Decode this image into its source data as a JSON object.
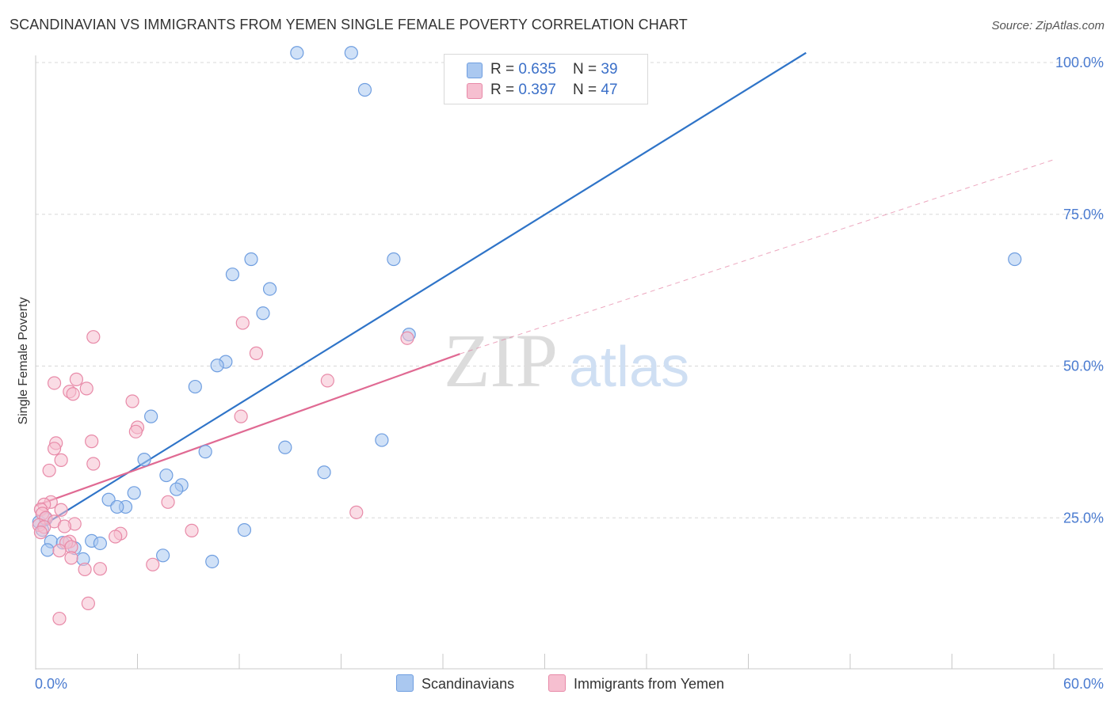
{
  "title": "SCANDINAVIAN VS IMMIGRANTS FROM YEMEN SINGLE FEMALE POVERTY CORRELATION CHART",
  "source": "Source: ZipAtlas.com",
  "watermark": {
    "zip": "ZIP",
    "atlas": "atlas"
  },
  "legend": {
    "rows": [
      {
        "r_label": "R = ",
        "r_value": "0.635",
        "n_label": "N = ",
        "n_value": "39"
      },
      {
        "r_label": "R = ",
        "r_value": "0.397",
        "n_label": "N = ",
        "n_value": "47"
      }
    ]
  },
  "bottom_legend": [
    "Scandinavians",
    "Immigrants from Yemen"
  ],
  "colors": {
    "blue_fill": "#aac8f0",
    "blue_stroke": "#6f9ee0",
    "blue_line": "#2f74c8",
    "pink_fill": "#f6bfd0",
    "pink_stroke": "#e88aa8",
    "pink_line": "#e06a93",
    "axis_label": "#4a7bd0",
    "grid": "#d8d8d8"
  },
  "chart_data": {
    "type": "scatter",
    "title": "SCANDINAVIAN VS IMMIGRANTS FROM YEMEN SINGLE FEMALE POVERTY CORRELATION CHART",
    "xlabel": "",
    "ylabel": "Single Female Poverty",
    "xlim": [
      0,
      60
    ],
    "ylim": [
      0,
      102
    ],
    "x_tick_labels": [
      "0.0%",
      "60.0%"
    ],
    "y_ticks": [
      25,
      50,
      75,
      100
    ],
    "y_tick_labels": [
      "25.0%",
      "50.0%",
      "75.0%",
      "100.0%"
    ],
    "series": [
      {
        "name": "Scandinavians",
        "r": 0.635,
        "n": 39,
        "trend": {
          "x": [
            0,
            45.4
          ],
          "y": [
            23.0,
            101.6
          ],
          "extend_dashed_to": null
        },
        "points": [
          [
            15.4,
            101.6
          ],
          [
            18.6,
            101.6
          ],
          [
            19.4,
            95.5
          ],
          [
            12.7,
            67.6
          ],
          [
            21.1,
            67.6
          ],
          [
            57.7,
            67.6
          ],
          [
            11.6,
            65.1
          ],
          [
            13.8,
            62.7
          ],
          [
            13.4,
            58.7
          ],
          [
            22.0,
            55.2
          ],
          [
            11.2,
            50.7
          ],
          [
            10.7,
            50.1
          ],
          [
            9.4,
            46.6
          ],
          [
            6.8,
            41.7
          ],
          [
            6.4,
            34.6
          ],
          [
            10.0,
            35.9
          ],
          [
            14.7,
            36.6
          ],
          [
            20.4,
            37.8
          ],
          [
            17.0,
            32.5
          ],
          [
            7.7,
            32.0
          ],
          [
            8.6,
            30.4
          ],
          [
            8.3,
            29.7
          ],
          [
            5.8,
            29.1
          ],
          [
            4.3,
            28.0
          ],
          [
            5.3,
            26.8
          ],
          [
            4.8,
            26.8
          ],
          [
            12.3,
            23.0
          ],
          [
            0.4,
            23.0
          ],
          [
            0.9,
            21.1
          ],
          [
            1.6,
            20.9
          ],
          [
            3.3,
            21.2
          ],
          [
            3.8,
            20.8
          ],
          [
            2.3,
            20.0
          ],
          [
            0.7,
            19.7
          ],
          [
            7.5,
            18.8
          ],
          [
            2.8,
            18.2
          ],
          [
            10.4,
            17.8
          ],
          [
            0.2,
            24.3
          ],
          [
            0.6,
            24.8
          ]
        ]
      },
      {
        "name": "Immigrants from Yemen",
        "r": 0.397,
        "n": 47,
        "trend": {
          "x": [
            0,
            25.0
          ],
          "y": [
            27.0,
            52.0
          ],
          "extend_dashed_to": [
            60,
            84.0
          ]
        },
        "points": [
          [
            12.2,
            57.1
          ],
          [
            3.4,
            54.8
          ],
          [
            21.9,
            54.6
          ],
          [
            13.0,
            52.1
          ],
          [
            17.2,
            47.6
          ],
          [
            1.1,
            47.2
          ],
          [
            2.4,
            47.8
          ],
          [
            3.0,
            46.3
          ],
          [
            2.0,
            45.8
          ],
          [
            2.2,
            45.4
          ],
          [
            5.7,
            44.2
          ],
          [
            12.1,
            41.7
          ],
          [
            6.0,
            39.9
          ],
          [
            5.9,
            39.2
          ],
          [
            1.2,
            37.3
          ],
          [
            3.3,
            37.6
          ],
          [
            1.1,
            36.4
          ],
          [
            1.5,
            34.5
          ],
          [
            3.4,
            33.9
          ],
          [
            0.8,
            32.8
          ],
          [
            7.8,
            27.6
          ],
          [
            18.9,
            25.9
          ],
          [
            0.9,
            27.6
          ],
          [
            0.5,
            27.2
          ],
          [
            0.3,
            26.4
          ],
          [
            1.5,
            26.3
          ],
          [
            0.4,
            25.7
          ],
          [
            0.6,
            25.0
          ],
          [
            1.1,
            24.4
          ],
          [
            2.3,
            24.0
          ],
          [
            0.2,
            23.8
          ],
          [
            0.5,
            23.5
          ],
          [
            1.7,
            23.6
          ],
          [
            5.0,
            22.4
          ],
          [
            9.2,
            22.9
          ],
          [
            4.7,
            21.9
          ],
          [
            2.0,
            21.1
          ],
          [
            1.8,
            20.9
          ],
          [
            2.1,
            20.2
          ],
          [
            1.4,
            19.6
          ],
          [
            2.1,
            18.4
          ],
          [
            6.9,
            17.3
          ],
          [
            3.8,
            16.6
          ],
          [
            2.9,
            16.5
          ],
          [
            3.1,
            10.9
          ],
          [
            1.4,
            8.4
          ],
          [
            0.3,
            22.6
          ]
        ]
      }
    ]
  }
}
